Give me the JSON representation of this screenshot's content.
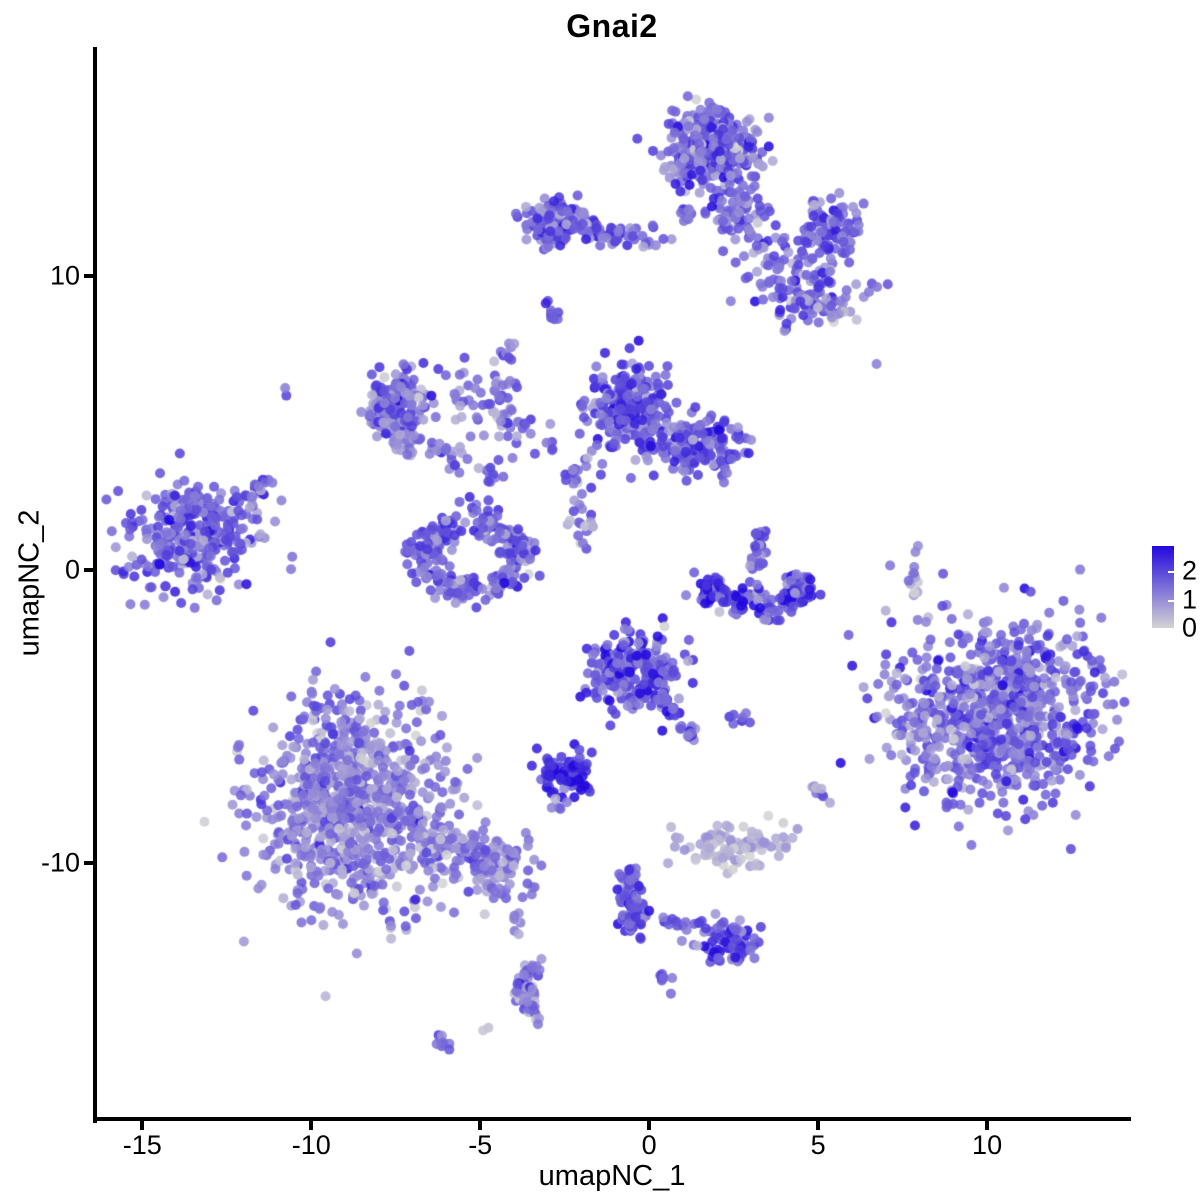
{
  "chart_data": {
    "type": "scatter",
    "title": "Gnai2",
    "xlabel": "umapNC_1",
    "ylabel": "umapNC_2",
    "xlim": [
      -16.4,
      14.2
    ],
    "ylim": [
      -18.7,
      17.8
    ],
    "x_ticks": [
      -15,
      -10,
      -5,
      0,
      5,
      10
    ],
    "y_ticks": [
      10,
      0,
      -10
    ],
    "grid": "off",
    "legend_position": "right",
    "legend": {
      "labels": [
        2,
        1,
        0
      ],
      "max_value": 2.9,
      "min_value": 0
    },
    "colors": {
      "low": "#d3d3d3",
      "mid": "#7a6ed8",
      "high": "#2208de",
      "axis": "#000000"
    },
    "point_radius_px": 5,
    "clusters": [
      {
        "type": "gauss",
        "x": 1.78,
        "y": 14.31,
        "sx": 0.65,
        "sy": 0.65,
        "n": 400,
        "t": 0.52,
        "ts": 0.22
      },
      {
        "type": "gauss",
        "x": 2.66,
        "y": 12.1,
        "sx": 0.45,
        "sy": 0.55,
        "n": 70,
        "t": 0.5,
        "ts": 0.2
      },
      {
        "type": "gauss",
        "x": 5.38,
        "y": 11.65,
        "sx": 0.5,
        "sy": 0.5,
        "n": 90,
        "t": 0.55,
        "ts": 0.2
      },
      {
        "type": "gauss",
        "x": 3.93,
        "y": 10.83,
        "sx": 0.7,
        "sy": 0.5,
        "n": 45,
        "t": 0.45,
        "ts": 0.2
      },
      {
        "type": "gauss",
        "x": 4.88,
        "y": 9.3,
        "sx": 0.83,
        "sy": 0.55,
        "n": 110,
        "t": 0.5,
        "ts": 0.22
      },
      {
        "type": "gauss",
        "x": -2.87,
        "y": 11.82,
        "sx": 0.44,
        "sy": 0.37,
        "n": 130,
        "t": 0.55,
        "ts": 0.2
      },
      {
        "type": "line",
        "x1": -2.13,
        "y1": 11.65,
        "x2": 0.36,
        "y2": 11.14,
        "w": 0.22,
        "n": 55,
        "t": 0.5,
        "ts": 0.2
      },
      {
        "type": "line",
        "x1": 1.04,
        "y1": 12.33,
        "x2": 1.12,
        "y2": 11.86,
        "w": 0.08,
        "n": 10,
        "t": 0.55,
        "ts": 0.15
      },
      {
        "type": "gauss",
        "x": -2.87,
        "y": 8.69,
        "sx": 0.12,
        "sy": 0.28,
        "n": 9,
        "t": 0.6,
        "ts": 0.15
      },
      {
        "type": "arc",
        "x": -6.95,
        "y": 5.38,
        "rx": 0.89,
        "ry": 0.95,
        "a1": 90,
        "a2": 270,
        "w": 0.3,
        "n": 150,
        "t": 0.5,
        "ts": 0.2
      },
      {
        "type": "gauss",
        "x": -7.4,
        "y": 5.62,
        "sx": 0.5,
        "sy": 0.55,
        "n": 90,
        "t": 0.5,
        "ts": 0.2
      },
      {
        "type": "line",
        "x1": -5.86,
        "y1": 6.13,
        "x2": -3.25,
        "y2": 4.26,
        "w": 0.4,
        "n": 55,
        "t": 0.45,
        "ts": 0.2
      },
      {
        "type": "line",
        "x1": -6.45,
        "y1": 4.22,
        "x2": -4.53,
        "y2": 3.17,
        "w": 0.2,
        "n": 28,
        "t": 0.5,
        "ts": 0.18
      },
      {
        "type": "line",
        "x1": -4.2,
        "y1": 7.7,
        "x2": -4.5,
        "y2": 4.94,
        "w": 0.15,
        "n": 24,
        "t": 0.5,
        "ts": 0.18
      },
      {
        "type": "gauss",
        "x": -0.65,
        "y": 5.52,
        "sx": 0.6,
        "sy": 0.75,
        "n": 240,
        "t": 0.62,
        "ts": 0.2
      },
      {
        "type": "gauss",
        "x": 1.57,
        "y": 4.19,
        "sx": 0.6,
        "sy": 0.48,
        "n": 130,
        "t": 0.6,
        "ts": 0.2
      },
      {
        "type": "line",
        "x1": 0.0,
        "y1": 4.1,
        "x2": 1.2,
        "y2": 4.3,
        "w": 0.3,
        "n": 45,
        "t": 0.58,
        "ts": 0.18
      },
      {
        "type": "line",
        "x1": -1.78,
        "y1": 4.26,
        "x2": -2.37,
        "y2": 2.73,
        "w": 0.25,
        "n": 18,
        "t": 0.5,
        "ts": 0.18
      },
      {
        "type": "line",
        "x1": -2.13,
        "y1": 2.39,
        "x2": -1.72,
        "y2": 0.58,
        "w": 0.2,
        "n": 14,
        "t": 0.45,
        "ts": 0.18
      },
      {
        "type": "arc",
        "x": -5.27,
        "y": 0.48,
        "rx": 1.39,
        "ry": 1.23,
        "a1": 110,
        "a2": 430,
        "w": 0.33,
        "n": 250,
        "t": 0.55,
        "ts": 0.2
      },
      {
        "type": "line",
        "x1": -5.41,
        "y1": 2.39,
        "x2": -4.35,
        "y2": 1.12,
        "w": 0.3,
        "n": 26,
        "t": 0.5,
        "ts": 0.18
      },
      {
        "type": "gauss",
        "x": -13.43,
        "y": 1.16,
        "sx": 0.98,
        "sy": 1.02,
        "n": 310,
        "t": 0.55,
        "ts": 0.2
      },
      {
        "type": "line",
        "x1": -12.34,
        "y1": 2.11,
        "x2": -11.36,
        "y2": 2.93,
        "w": 0.18,
        "n": 22,
        "t": 0.5,
        "ts": 0.18
      },
      {
        "type": "arc",
        "x": 3.2,
        "y": -0.61,
        "rx": 1.33,
        "ry": 0.68,
        "a1": 150,
        "a2": 395,
        "w": 0.3,
        "n": 160,
        "t": 0.7,
        "ts": 0.25
      },
      {
        "type": "line",
        "x1": 3.17,
        "y1": -0.1,
        "x2": 3.28,
        "y2": 1.26,
        "w": 0.13,
        "n": 26,
        "t": 0.5,
        "ts": 0.18
      },
      {
        "type": "line",
        "x1": 7.93,
        "y1": 0.85,
        "x2": 7.78,
        "y2": -0.78,
        "w": 0.07,
        "n": 13,
        "t": 0.28,
        "ts": 0.13
      },
      {
        "type": "gauss",
        "x": -0.47,
        "y": -3.41,
        "sx": 0.62,
        "sy": 0.72,
        "n": 230,
        "t": 0.64,
        "ts": 0.22
      },
      {
        "type": "line",
        "x1": 0.38,
        "y1": -4.16,
        "x2": 1.21,
        "y2": -5.69,
        "w": 0.16,
        "n": 34,
        "t": 0.6,
        "ts": 0.2
      },
      {
        "type": "gauss",
        "x": 2.75,
        "y": -5.08,
        "sx": 0.15,
        "sy": 0.15,
        "n": 7,
        "t": 0.6,
        "ts": 0.15
      },
      {
        "type": "gauss",
        "x": -2.43,
        "y": -6.88,
        "sx": 0.38,
        "sy": 0.34,
        "n": 85,
        "t": 0.8,
        "ts": 0.2
      },
      {
        "type": "line",
        "x1": -2.69,
        "y1": -7.77,
        "x2": -2.78,
        "y2": -8.25,
        "w": 0.08,
        "n": 5,
        "t": 0.5,
        "ts": 0.15
      },
      {
        "type": "gauss",
        "x": -8.76,
        "y": -8.04,
        "sx": 1.36,
        "sy": 1.77,
        "n": 850,
        "t": 0.42,
        "ts": 0.18
      },
      {
        "type": "line",
        "x1": -6.57,
        "y1": -8.96,
        "x2": -3.85,
        "y2": -10.63,
        "w": 0.5,
        "n": 170,
        "t": 0.42,
        "ts": 0.18
      },
      {
        "type": "line",
        "x1": -3.96,
        "y1": -11.79,
        "x2": -3.88,
        "y2": -12.4,
        "w": 0.08,
        "n": 6,
        "t": 0.45,
        "ts": 0.15
      },
      {
        "type": "gauss",
        "x": 10.36,
        "y": -4.87,
        "sx": 1.54,
        "sy": 1.57,
        "n": 820,
        "t": 0.5,
        "ts": 0.22
      },
      {
        "type": "gauss",
        "x": 8.14,
        "y": -5.38,
        "sx": 0.45,
        "sy": 0.8,
        "n": 35,
        "t": 0.4,
        "ts": 0.18
      },
      {
        "type": "gauss",
        "x": 2.46,
        "y": -9.44,
        "sx": 0.77,
        "sy": 0.37,
        "n": 100,
        "t": 0.17,
        "ts": 0.1
      },
      {
        "type": "gauss",
        "x": 5.0,
        "y": -7.56,
        "sx": 0.18,
        "sy": 0.18,
        "n": 9,
        "t": 0.33,
        "ts": 0.12
      },
      {
        "type": "line",
        "x1": -0.65,
        "y1": -10.29,
        "x2": -0.36,
        "y2": -12.27,
        "w": 0.2,
        "n": 85,
        "t": 0.6,
        "ts": 0.2
      },
      {
        "type": "line",
        "x1": 0.15,
        "y1": -11.86,
        "x2": 1.42,
        "y2": -12.2,
        "w": 0.1,
        "n": 12,
        "t": 0.5,
        "ts": 0.18
      },
      {
        "type": "gauss",
        "x": 2.28,
        "y": -12.64,
        "sx": 0.47,
        "sy": 0.37,
        "n": 75,
        "t": 0.6,
        "ts": 0.2
      },
      {
        "type": "gauss",
        "x": 0.53,
        "y": -14.0,
        "sx": 0.15,
        "sy": 0.18,
        "n": 8,
        "t": 0.6,
        "ts": 0.15
      },
      {
        "type": "arc",
        "x": -2.93,
        "y": -14.34,
        "rx": 0.83,
        "ry": 0.95,
        "a1": 120,
        "a2": 250,
        "w": 0.2,
        "n": 62,
        "t": 0.45,
        "ts": 0.22
      },
      {
        "type": "gauss",
        "x": -4.85,
        "y": -15.64,
        "sx": 0.08,
        "sy": 0.08,
        "n": 2,
        "t": 0.06,
        "ts": 0.05
      },
      {
        "type": "gauss",
        "x": -6.15,
        "y": -16.05,
        "sx": 0.2,
        "sy": 0.1,
        "n": 9,
        "t": 0.45,
        "ts": 0.15
      },
      {
        "type": "gauss",
        "x": -10.65,
        "y": 6.06,
        "sx": 0.1,
        "sy": 0.1,
        "n": 2,
        "t": 0.45,
        "ts": 0.1
      },
      {
        "type": "gauss",
        "x": 6.66,
        "y": 7.05,
        "sx": 0.05,
        "sy": 0.05,
        "n": 1,
        "t": 0.4,
        "ts": 0.05
      },
      {
        "type": "gauss",
        "x": -2.0,
        "y": 1.5,
        "sx": 0.35,
        "sy": 0.2,
        "n": 5,
        "t": 0.15,
        "ts": 0.08
      }
    ]
  }
}
